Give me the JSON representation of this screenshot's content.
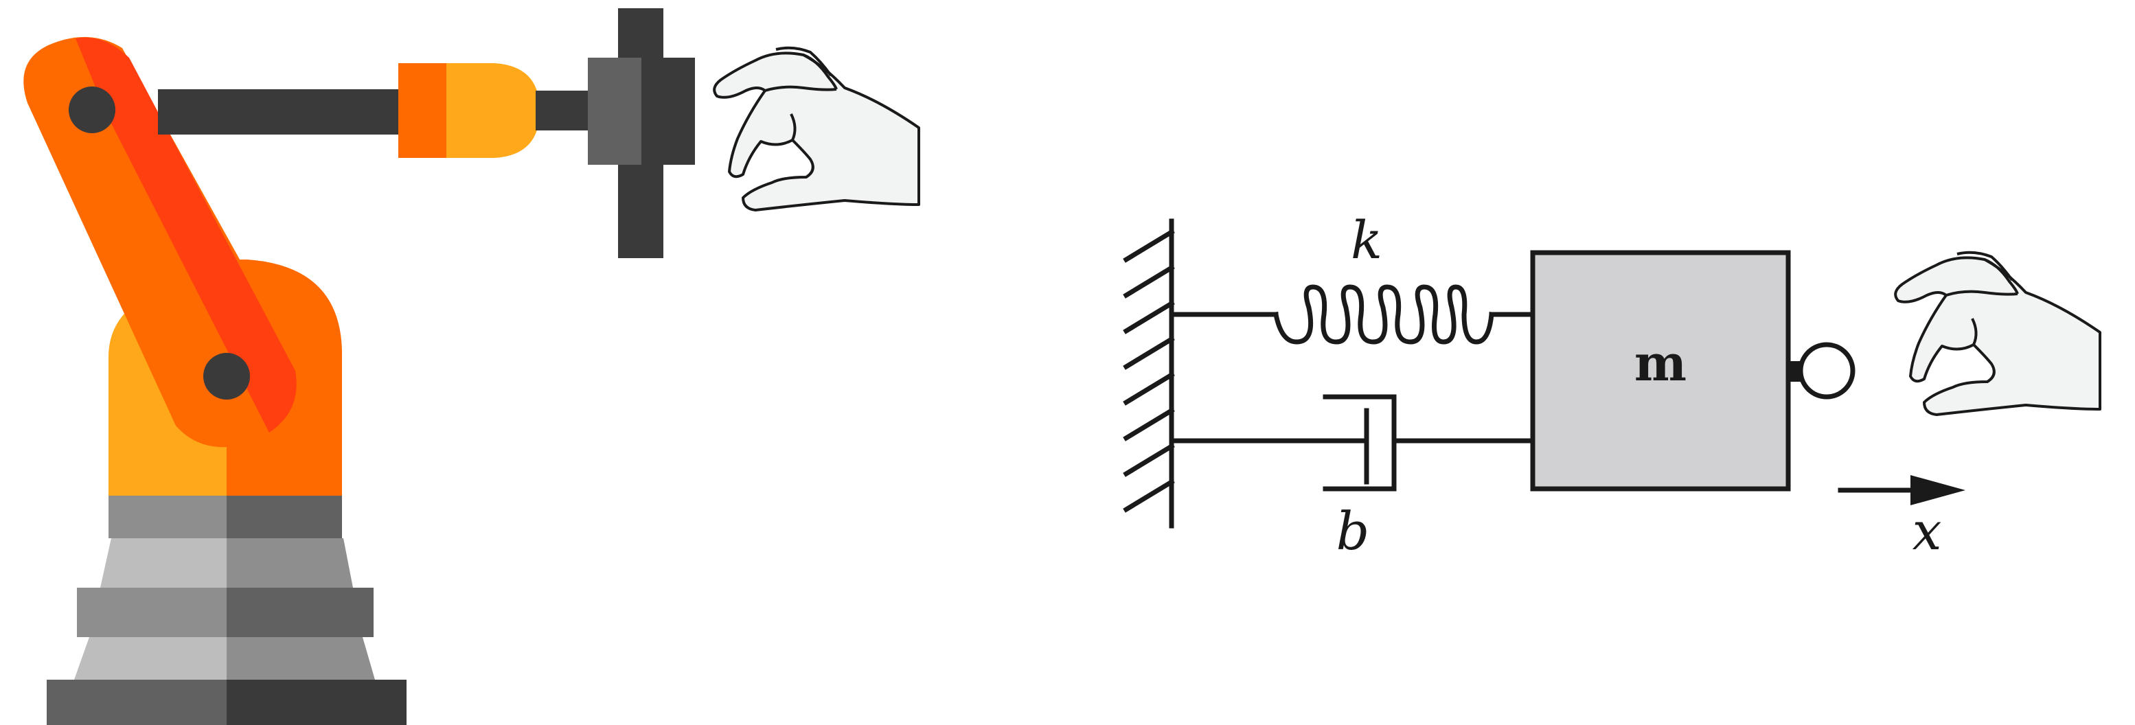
{
  "labels": {
    "spring": "k",
    "damper": "b",
    "mass": "m",
    "displacement": "x"
  },
  "colors": {
    "robot_orange": "#FF6A00",
    "robot_red": "#FF3F10",
    "robot_yellow": "#FFA81A",
    "robot_dark": "#3A3A3A",
    "robot_mid_gray": "#616161",
    "robot_gray": "#8E8E8E",
    "robot_light_gray": "#BDBDBD",
    "mass_fill": "#D1D1D3",
    "line": "#1A1A1A",
    "hand_fill": "#F2F4F3"
  },
  "icons": {
    "robot": "industrial-robot-arm-icon",
    "hand_left": "pinching-hand-icon",
    "hand_right": "pinching-hand-icon"
  }
}
